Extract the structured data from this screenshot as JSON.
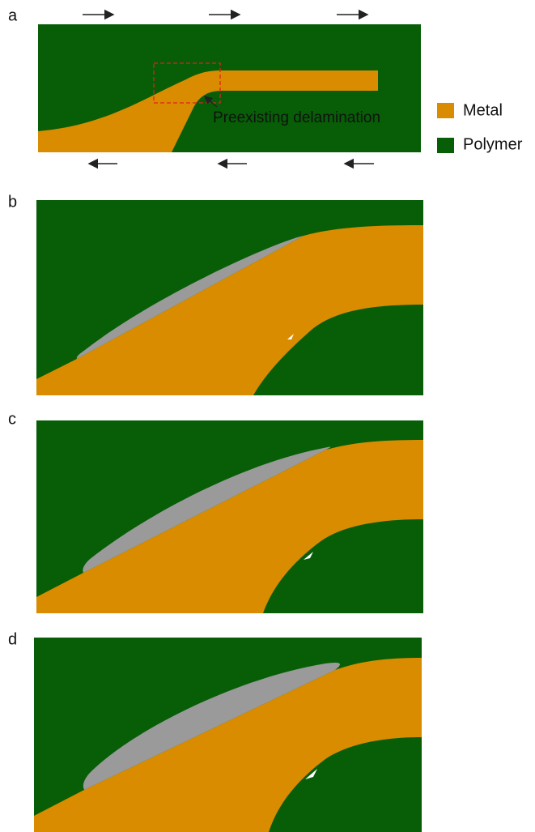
{
  "panels": [
    {
      "label": "a"
    },
    {
      "label": "b"
    },
    {
      "label": "c"
    },
    {
      "label": "d"
    }
  ],
  "annotation": "Preexisting delamination",
  "legend": [
    {
      "label": "Metal",
      "color": "#d98c00"
    },
    {
      "label": "Polymer",
      "color": "#075e07"
    }
  ]
}
